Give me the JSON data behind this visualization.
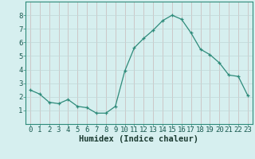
{
  "x": [
    0,
    1,
    2,
    3,
    4,
    5,
    6,
    7,
    8,
    9,
    10,
    11,
    12,
    13,
    14,
    15,
    16,
    17,
    18,
    19,
    20,
    21,
    22,
    23
  ],
  "y": [
    2.5,
    2.2,
    1.6,
    1.5,
    1.8,
    1.3,
    1.2,
    0.8,
    0.8,
    1.3,
    3.9,
    5.6,
    6.3,
    6.9,
    7.6,
    8.0,
    7.7,
    6.7,
    5.5,
    5.1,
    4.5,
    3.6,
    3.5,
    2.1
  ],
  "line_color": "#2e8b7a",
  "bg_color": "#d6efef",
  "grid_color_v": "#c8b8b8",
  "grid_color_h": "#c0d8d8",
  "spine_color": "#2e8b7a",
  "xlabel": "Humidex (Indice chaleur)",
  "xlabel_fontsize": 7.5,
  "tick_fontsize": 6.5,
  "ylim": [
    0,
    9
  ],
  "xlim": [
    -0.5,
    23.5
  ],
  "yticks": [
    1,
    2,
    3,
    4,
    5,
    6,
    7,
    8
  ],
  "xticks": [
    0,
    1,
    2,
    3,
    4,
    5,
    6,
    7,
    8,
    9,
    10,
    11,
    12,
    13,
    14,
    15,
    16,
    17,
    18,
    19,
    20,
    21,
    22,
    23
  ]
}
